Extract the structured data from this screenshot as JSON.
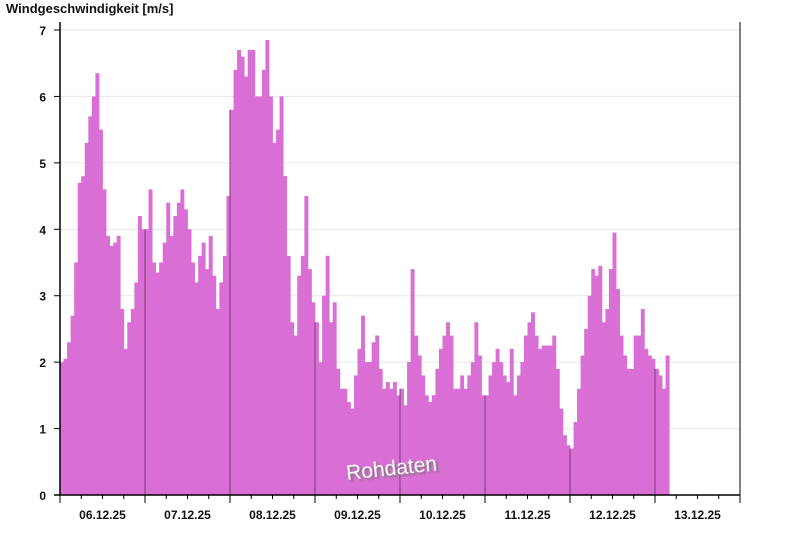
{
  "chart_data": {
    "type": "area",
    "title": "Windgeschwindigkeit [m/s]",
    "ylabel": "",
    "xlabel": "",
    "ylim": [
      0,
      7
    ],
    "yticks": [
      "0",
      "1",
      "2",
      "3",
      "4",
      "5",
      "6",
      "7"
    ],
    "grid": true,
    "watermark": "Rohdaten",
    "color": "#d96fd4",
    "resolution": "hourly",
    "days": [
      {
        "date": "06.12.25",
        "values": [
          2.0,
          2.05,
          2.3,
          2.7,
          3.5,
          4.7,
          4.8,
          5.3,
          5.7,
          6.0,
          6.35,
          5.5,
          4.6,
          3.9,
          3.75,
          3.8,
          3.9,
          2.8,
          2.2,
          2.6,
          2.8,
          3.2,
          4.2,
          4.0
        ]
      },
      {
        "date": "07.12.25",
        "values": [
          4.0,
          4.6,
          3.5,
          3.35,
          3.5,
          3.8,
          4.4,
          3.9,
          4.2,
          4.4,
          4.6,
          4.3,
          4.0,
          3.5,
          3.2,
          3.6,
          3.8,
          3.4,
          3.9,
          3.3,
          2.8,
          3.2,
          3.6,
          4.5
        ]
      },
      {
        "date": "08.12.25",
        "values": [
          5.8,
          6.4,
          6.7,
          6.6,
          6.3,
          6.7,
          6.7,
          6.0,
          6.0,
          6.4,
          6.85,
          6.0,
          5.3,
          5.5,
          6.0,
          4.8,
          3.6,
          2.6,
          2.4,
          3.3,
          3.6,
          4.5,
          3.4,
          2.9
        ]
      },
      {
        "date": "09.12.25",
        "values": [
          2.6,
          2.0,
          3.0,
          3.6,
          2.6,
          2.9,
          1.9,
          1.6,
          1.6,
          1.4,
          1.3,
          1.8,
          2.2,
          2.7,
          2.0,
          2.0,
          2.3,
          2.4,
          1.9,
          1.6,
          1.7,
          1.6,
          1.7,
          1.5
        ]
      },
      {
        "date": "10.12.25",
        "values": [
          1.6,
          1.35,
          2.0,
          3.4,
          2.4,
          2.1,
          1.8,
          1.5,
          1.4,
          1.5,
          1.9,
          2.2,
          2.4,
          2.6,
          2.4,
          1.6,
          1.6,
          1.8,
          1.6,
          1.8,
          2.0,
          2.6,
          2.1,
          1.5
        ]
      },
      {
        "date": "11.12.25",
        "values": [
          1.5,
          1.8,
          2.0,
          2.2,
          2.0,
          1.8,
          1.7,
          2.2,
          1.5,
          1.8,
          2.0,
          2.4,
          2.6,
          2.75,
          2.4,
          2.2,
          2.25,
          2.25,
          2.25,
          2.4,
          1.9,
          1.3,
          0.9,
          0.75
        ]
      },
      {
        "date": "12.12.25",
        "values": [
          0.7,
          1.1,
          1.6,
          2.1,
          2.5,
          3.0,
          3.4,
          3.3,
          3.45,
          2.6,
          2.8,
          3.4,
          3.95,
          3.1,
          2.4,
          2.1,
          1.9,
          1.9,
          2.4,
          2.4,
          2.8,
          2.2,
          2.1,
          2.05
        ]
      },
      {
        "date": "13.12.25",
        "values": [
          1.9,
          1.8,
          1.6,
          2.1
        ]
      }
    ]
  }
}
